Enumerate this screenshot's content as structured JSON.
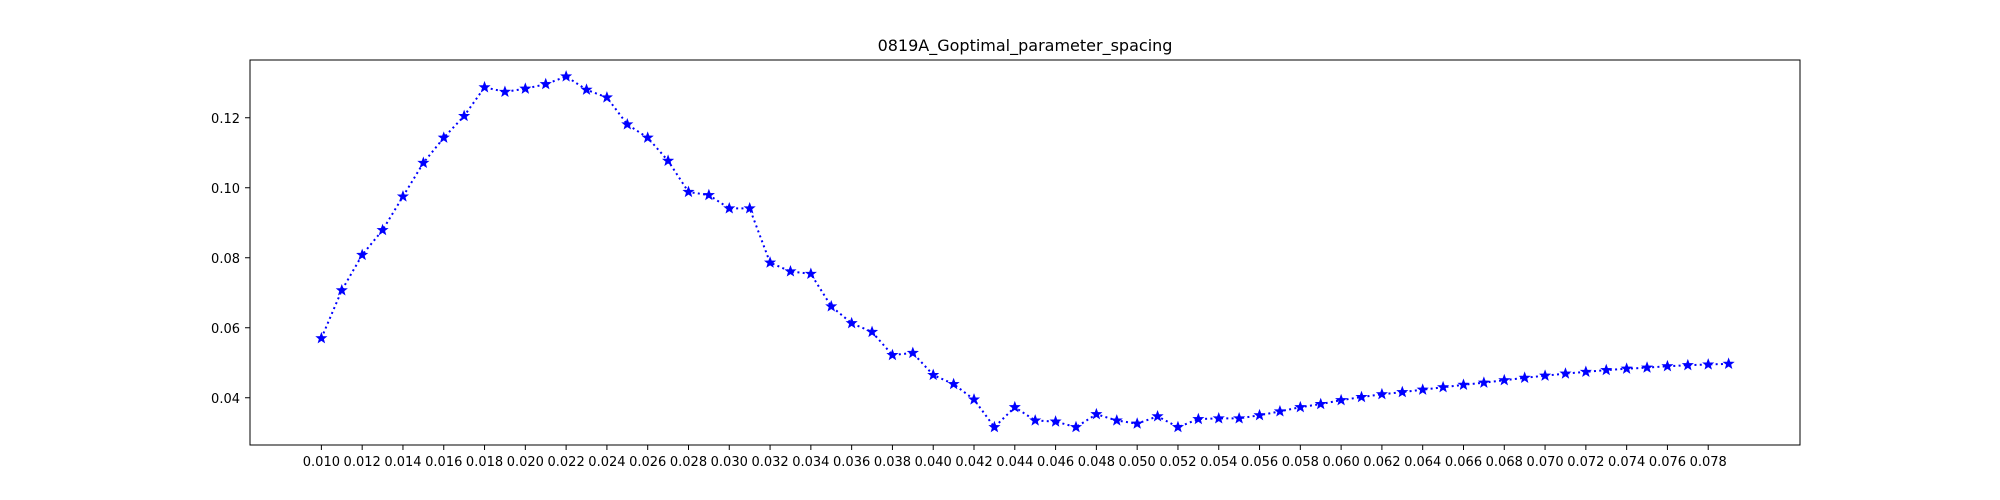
{
  "chart_data": {
    "type": "line",
    "title": "0819A_Goptimal_parameter_spacing",
    "xlabel": "",
    "ylabel": "",
    "xlim": [
      0.0065,
      0.0825
    ],
    "ylim": [
      0.0265,
      0.1365
    ],
    "grid": false,
    "line_style": "dotted",
    "marker": "star",
    "color": "#0000ff",
    "x_ticks": [
      "0.010",
      "0.012",
      "0.014",
      "0.016",
      "0.018",
      "0.020",
      "0.022",
      "0.024",
      "0.026",
      "0.028",
      "0.030",
      "0.032",
      "0.034",
      "0.036",
      "0.038",
      "0.040",
      "0.042",
      "0.044",
      "0.046",
      "0.048",
      "0.050",
      "0.052",
      "0.054",
      "0.056",
      "0.058",
      "0.060",
      "0.062",
      "0.064",
      "0.066",
      "0.068",
      "0.070",
      "0.072",
      "0.074",
      "0.076",
      "0.078"
    ],
    "y_ticks": [
      "0.04",
      "0.06",
      "0.08",
      "0.10",
      "0.12"
    ],
    "series": [
      {
        "x": [
          0.01,
          0.011,
          0.012,
          0.013,
          0.014,
          0.015,
          0.016,
          0.017,
          0.018,
          0.019,
          0.02,
          0.021,
          0.022,
          0.023,
          0.024,
          0.025,
          0.026,
          0.027,
          0.028,
          0.029,
          0.03,
          0.031,
          0.032,
          0.033,
          0.034,
          0.035,
          0.036,
          0.037,
          0.038,
          0.039,
          0.04,
          0.041,
          0.042,
          0.043,
          0.044,
          0.045,
          0.046,
          0.047,
          0.048,
          0.049,
          0.05,
          0.051,
          0.052,
          0.053,
          0.054,
          0.055,
          0.056,
          0.057,
          0.058,
          0.059,
          0.06,
          0.061,
          0.062,
          0.063,
          0.064,
          0.065,
          0.066,
          0.067,
          0.068,
          0.069,
          0.07,
          0.071,
          0.072,
          0.073,
          0.074,
          0.075,
          0.076,
          0.077,
          0.078,
          0.079
        ],
        "values": [
          0.057,
          0.0707,
          0.0808,
          0.0879,
          0.0975,
          0.1071,
          0.1143,
          0.1205,
          0.1287,
          0.1274,
          0.1283,
          0.1296,
          0.1318,
          0.128,
          0.1258,
          0.1181,
          0.1143,
          0.1077,
          0.0988,
          0.0979,
          0.0941,
          0.0941,
          0.0786,
          0.0761,
          0.0754,
          0.0661,
          0.0613,
          0.0588,
          0.0522,
          0.0528,
          0.0465,
          0.0439,
          0.0395,
          0.0316,
          0.0373,
          0.0335,
          0.0332,
          0.0316,
          0.0353,
          0.0335,
          0.0326,
          0.0347,
          0.0316,
          0.0339,
          0.0341,
          0.0341,
          0.035,
          0.0361,
          0.0373,
          0.0382,
          0.0393,
          0.0402,
          0.041,
          0.0416,
          0.0423,
          0.043,
          0.0437,
          0.0443,
          0.045,
          0.0457,
          0.0463,
          0.0469,
          0.0474,
          0.0479,
          0.0483,
          0.0486,
          0.049,
          0.0493,
          0.0495,
          0.0497
        ]
      }
    ]
  }
}
